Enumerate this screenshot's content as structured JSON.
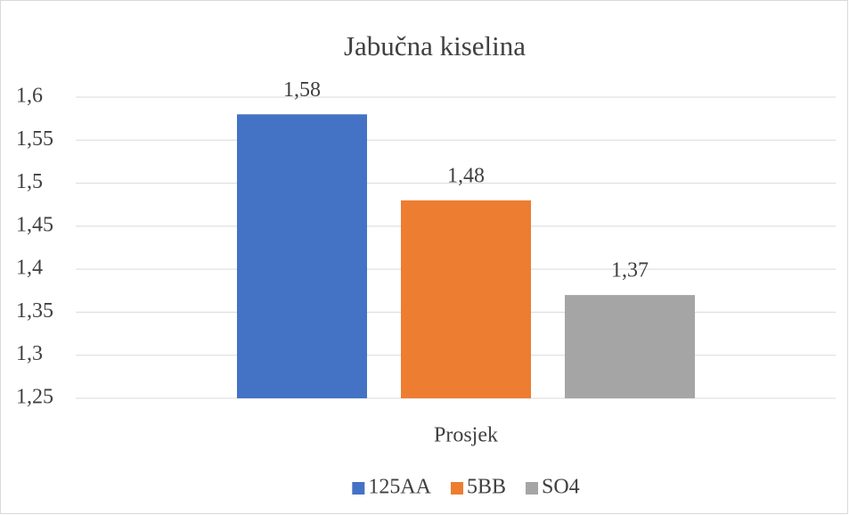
{
  "chart_data": {
    "type": "bar",
    "title": "Jabučna kiselina",
    "categories": [
      "Prosjek"
    ],
    "series": [
      {
        "name": "125AA",
        "color": "#4472c4",
        "values": [
          1.58
        ],
        "value_labels": [
          "1,58"
        ]
      },
      {
        "name": "5BB",
        "color": "#ed7d31",
        "values": [
          1.48
        ],
        "value_labels": [
          "1,48"
        ]
      },
      {
        "name": "SO4",
        "color": "#a5a5a5",
        "values": [
          1.37
        ],
        "value_labels": [
          "1,37"
        ]
      }
    ],
    "ylim": [
      1.25,
      1.6
    ],
    "yticks": [
      {
        "value": 1.25,
        "label": "1,25"
      },
      {
        "value": 1.3,
        "label": "1,3"
      },
      {
        "value": 1.35,
        "label": "1,35"
      },
      {
        "value": 1.4,
        "label": "1,4"
      },
      {
        "value": 1.45,
        "label": "1,45"
      },
      {
        "value": 1.5,
        "label": "1,5"
      },
      {
        "value": 1.55,
        "label": "1,55"
      },
      {
        "value": 1.6,
        "label": "1,6"
      }
    ],
    "grid": true,
    "legend": "bottom"
  }
}
